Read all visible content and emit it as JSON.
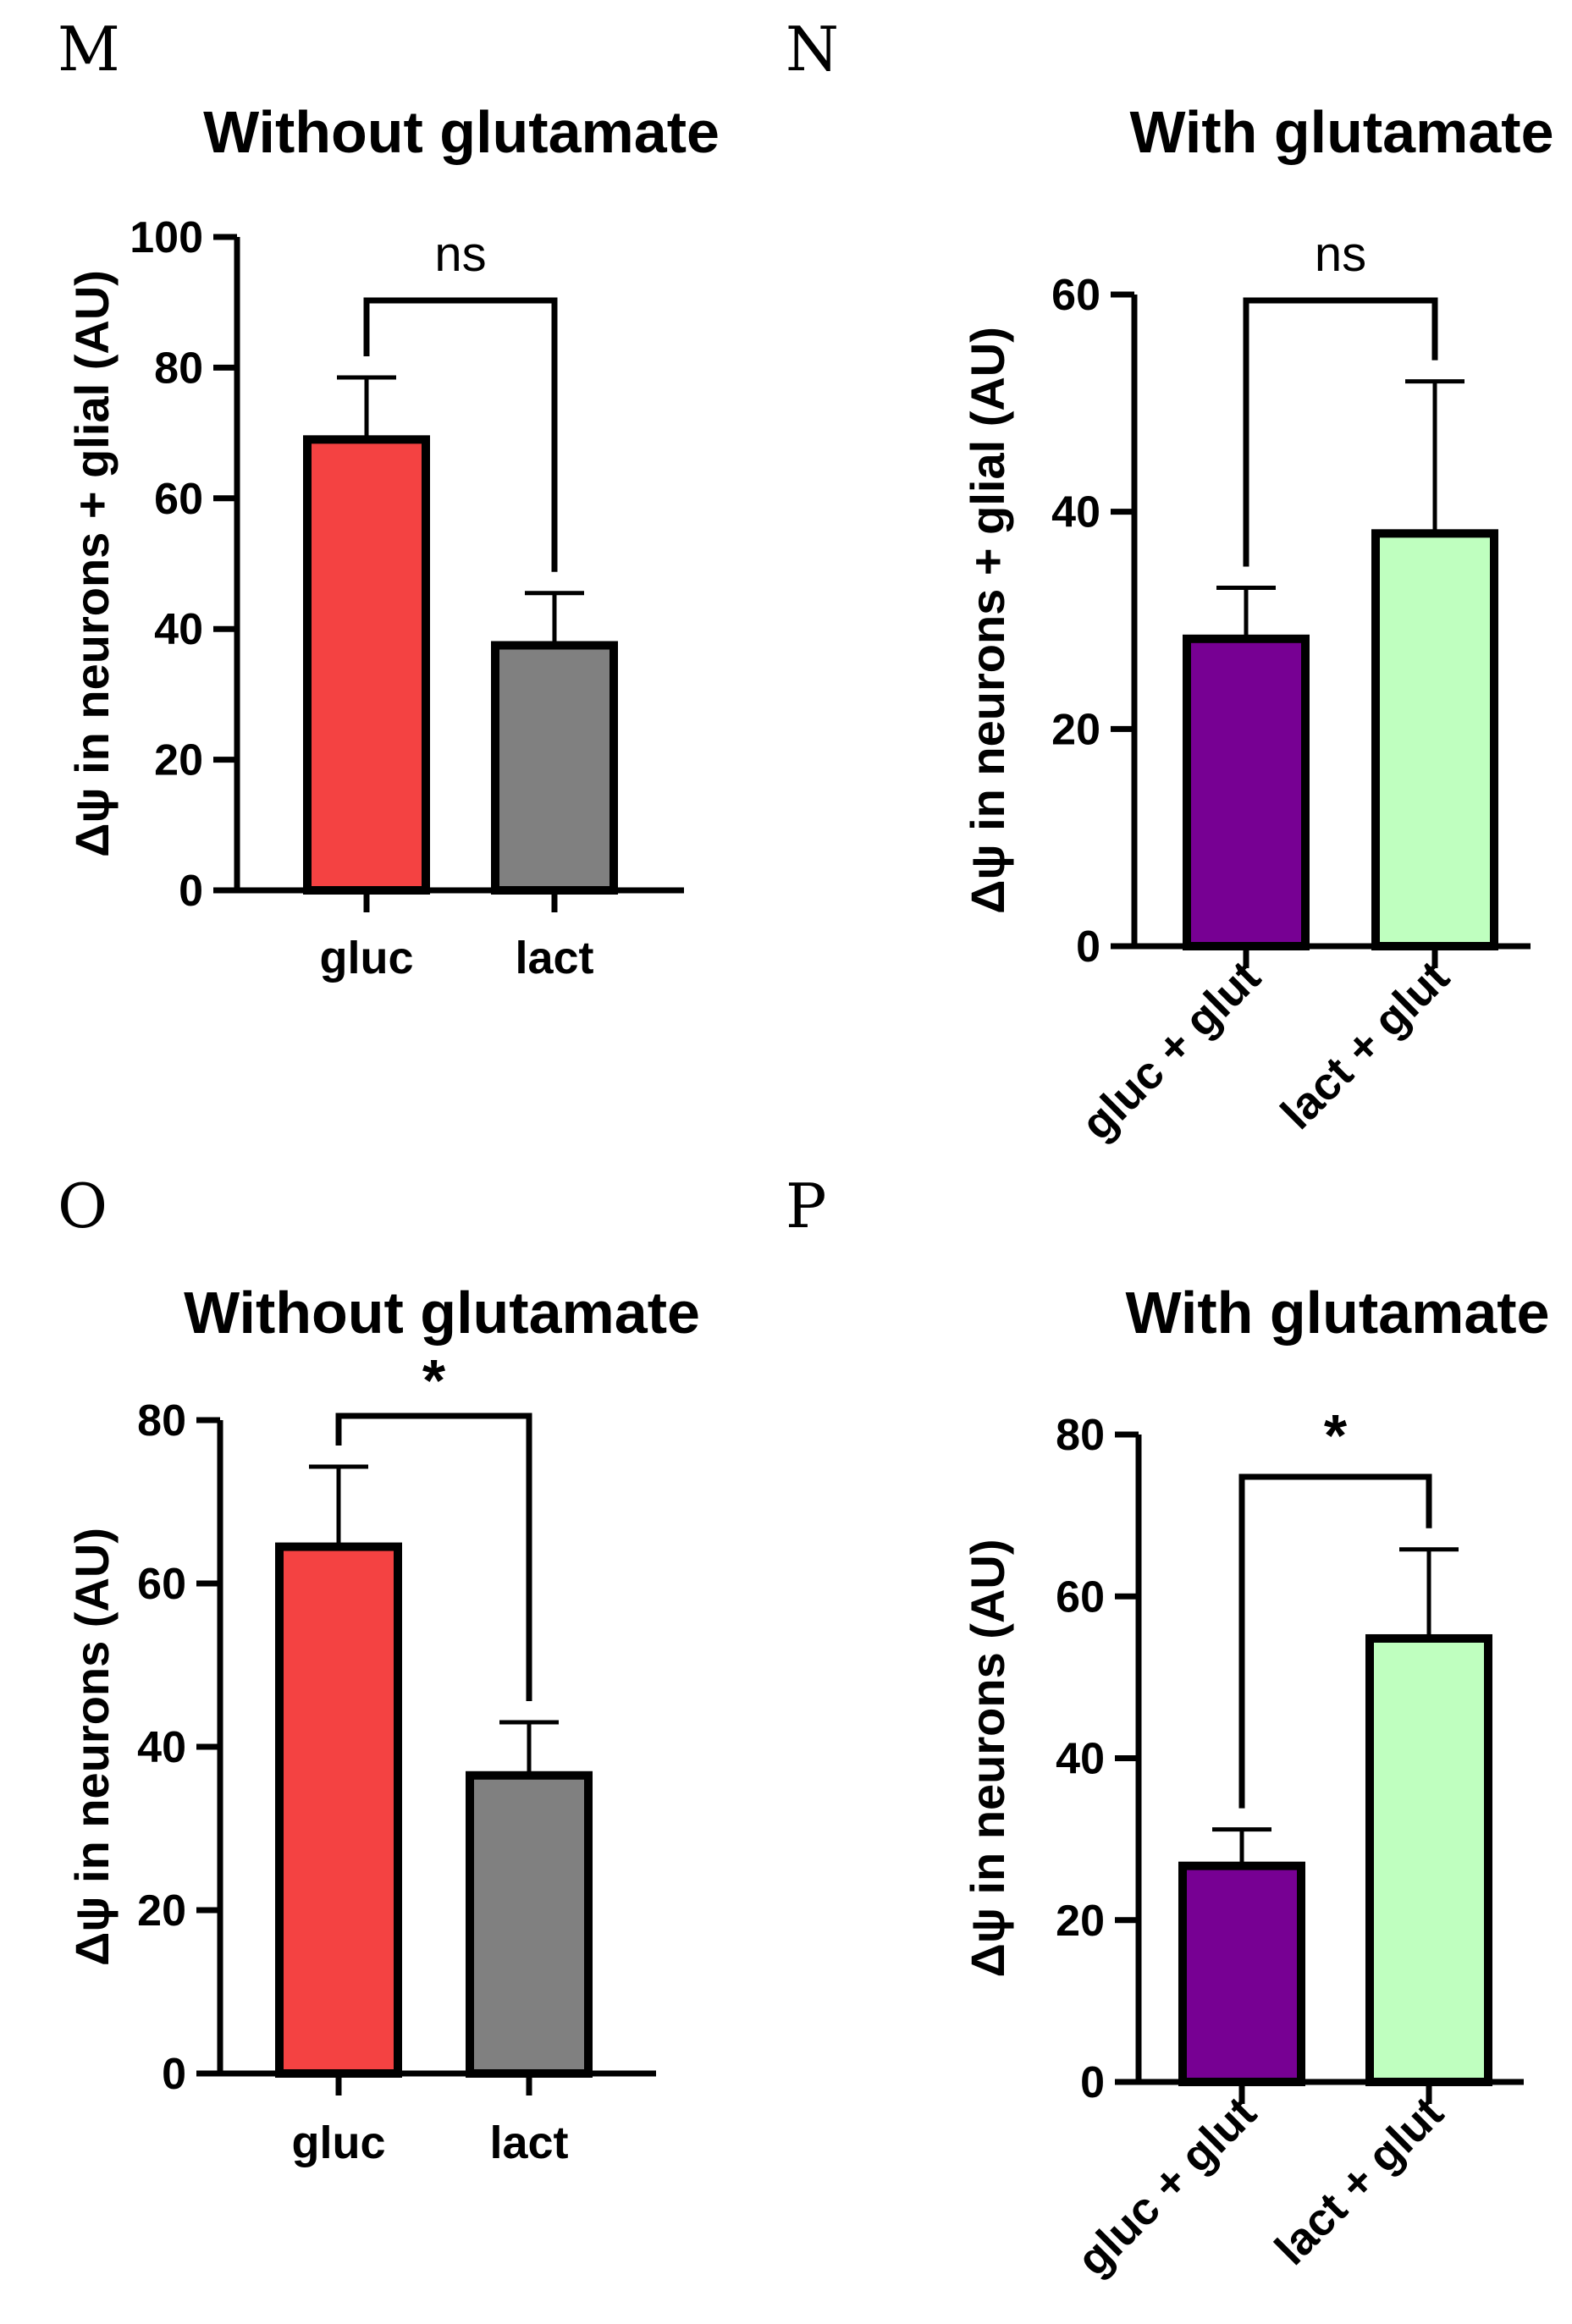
{
  "chart_data": [
    {
      "panel": "M",
      "type": "bar",
      "title": "Without glutamate",
      "ylabel": "Δψ in neurons + glial (AU)",
      "xlabel": "",
      "categories": [
        "gluc",
        "lact"
      ],
      "values": [
        69,
        37.5
      ],
      "errors": [
        9.5,
        8
      ],
      "colors": [
        "#f44242",
        "#808080"
      ],
      "ylim": [
        0,
        100
      ],
      "yticks": [
        0,
        20,
        40,
        60,
        80,
        100
      ],
      "significance": "ns"
    },
    {
      "panel": "N",
      "type": "bar",
      "title": "With glutamate",
      "ylabel": "Δψ in neurons + glial (AU)",
      "xlabel": "",
      "categories": [
        "gluc + glut",
        "lact + glut"
      ],
      "values": [
        28.3,
        38
      ],
      "errors": [
        4.7,
        14
      ],
      "colors": [
        "#770093",
        "#bfffbf"
      ],
      "ylim": [
        0,
        60
      ],
      "yticks": [
        0,
        20,
        40,
        60
      ],
      "significance": "ns"
    },
    {
      "panel": "O",
      "type": "bar",
      "title": "Without glutamate",
      "ylabel": "Δψ in neurons (AU)",
      "xlabel": "",
      "categories": [
        "gluc",
        "lact"
      ],
      "values": [
        64.5,
        36.5
      ],
      "errors": [
        9.8,
        6.5
      ],
      "colors": [
        "#f44242",
        "#808080"
      ],
      "ylim": [
        0,
        80
      ],
      "yticks": [
        0,
        20,
        40,
        60,
        80
      ],
      "significance": "*"
    },
    {
      "panel": "P",
      "type": "bar",
      "title": "With glutamate",
      "ylabel": "Δψ in neurons (AU)",
      "xlabel": "",
      "categories": [
        "gluc + glut",
        "lact + glut"
      ],
      "values": [
        26.7,
        54.8
      ],
      "errors": [
        4.5,
        11
      ],
      "colors": [
        "#770093",
        "#bfffbf"
      ],
      "ylim": [
        0,
        80
      ],
      "yticks": [
        0,
        20,
        40,
        60,
        80
      ],
      "significance": "*"
    }
  ]
}
